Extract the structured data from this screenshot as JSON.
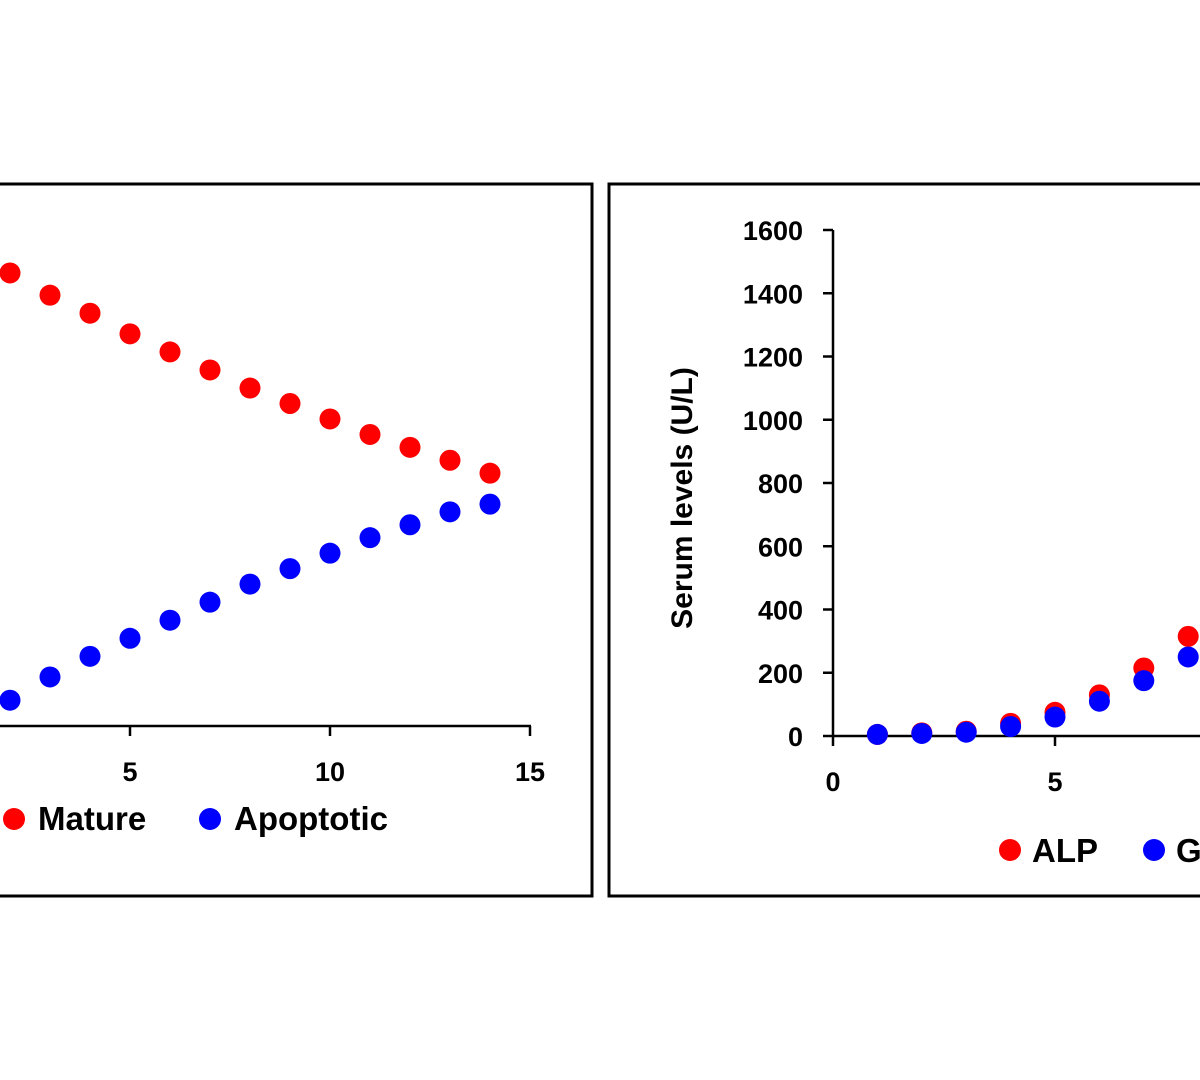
{
  "chart_data": [
    {
      "type": "scatter",
      "xlim": [
        0,
        15
      ],
      "x_ticks": [
        "5",
        "10",
        "15"
      ],
      "x": [
        2,
        3,
        4,
        5,
        6,
        7,
        8,
        9,
        10,
        11,
        12,
        13,
        14
      ],
      "series": [
        {
          "name": "Mature",
          "color": "#ff0000",
          "values": [
            87.8,
            83.5,
            80.0,
            76.0,
            72.5,
            69.0,
            65.5,
            62.5,
            59.5,
            56.5,
            54.0,
            51.5,
            49.0
          ]
        },
        {
          "name": "Apoptotic",
          "color": "#0000ff",
          "values": [
            5.0,
            9.5,
            13.5,
            17.0,
            20.5,
            24.0,
            27.5,
            30.5,
            33.5,
            36.5,
            39.0,
            41.5,
            43.0
          ]
        }
      ],
      "legend": [
        "Mature",
        "Apoptotic"
      ],
      "legend_position": "bottom"
    },
    {
      "type": "scatter",
      "ylabel": "Serum levels (U/L)",
      "xlim": [
        0,
        15
      ],
      "ylim": [
        0,
        1600
      ],
      "x_ticks": [
        "0",
        "5"
      ],
      "y_ticks": [
        "0",
        "200",
        "400",
        "600",
        "800",
        "1000",
        "1200",
        "1400",
        "1600"
      ],
      "x": [
        1,
        2,
        3,
        4,
        5,
        6,
        7,
        8
      ],
      "series": [
        {
          "name": "ALP",
          "color": "#ff0000",
          "values": [
            5,
            10,
            15,
            40,
            75,
            130,
            215,
            315
          ]
        },
        {
          "name": "G",
          "color": "#0000ff",
          "values": [
            5,
            8,
            12,
            30,
            60,
            110,
            175,
            250
          ]
        }
      ],
      "legend": [
        "ALP",
        "G"
      ],
      "legend_position": "bottom"
    }
  ]
}
